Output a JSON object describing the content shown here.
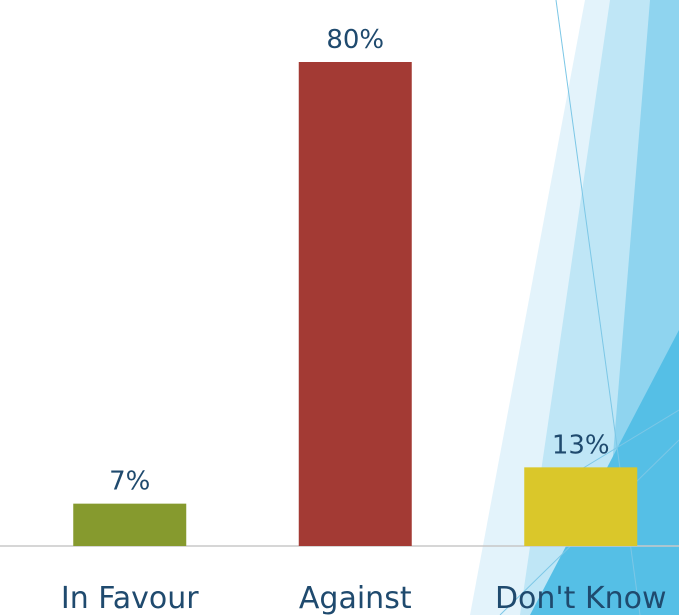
{
  "chart_data": {
    "type": "bar",
    "categories": [
      "In Favour",
      "Against",
      "Don't Know"
    ],
    "values": [
      7,
      80,
      13
    ],
    "value_labels": [
      "7%",
      "80%",
      "13%"
    ],
    "colors": [
      "#869a2e",
      "#a33a34",
      "#dac72a"
    ]
  }
}
